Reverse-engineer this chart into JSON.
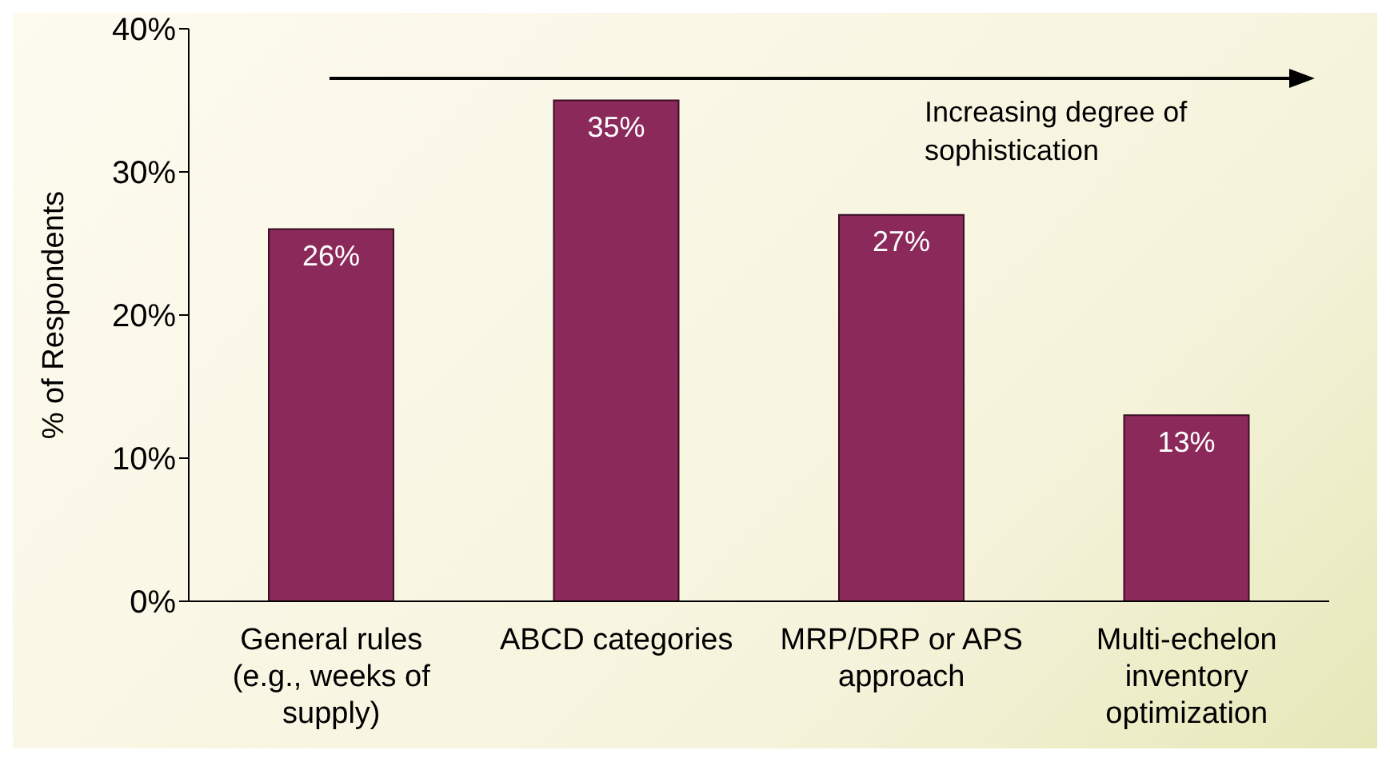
{
  "chart_data": {
    "type": "bar",
    "ylabel": "% of Respondents",
    "categories": [
      "General rules (e.g., weeks of supply)",
      "ABCD categories",
      "MRP/DRP or APS approach",
      "Multi-echelon inventory optimization"
    ],
    "values": [
      26,
      35,
      27,
      13
    ],
    "color": "#8b2a5a",
    "value_labels": [
      "26%",
      "35%",
      "27%",
      "13%"
    ],
    "ylim": [
      0,
      40
    ],
    "yticks": [
      {
        "value": 0,
        "label": "0%"
      },
      {
        "value": 10,
        "label": "10%"
      },
      {
        "value": 20,
        "label": "20%"
      },
      {
        "value": 30,
        "label": "30%"
      },
      {
        "value": 40,
        "label": "40%"
      }
    ],
    "grid": false,
    "legend": false,
    "annotations": [
      "Increasing degree of sophistication"
    ]
  }
}
